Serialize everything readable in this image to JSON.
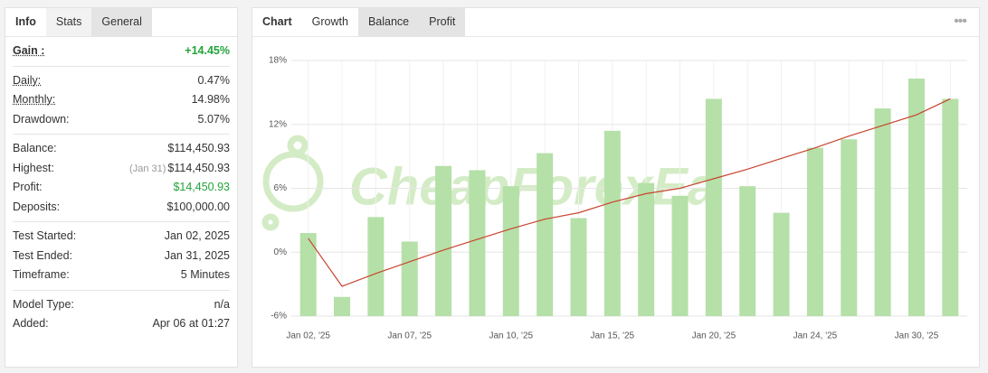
{
  "left_panel": {
    "tabs": [
      "Info",
      "Stats",
      "General"
    ],
    "groups": [
      [
        {
          "label": "Gain :",
          "value": "+14.45%",
          "color": "#22a33a"
        }
      ],
      [
        {
          "label": "Daily:",
          "value": "0.47%"
        },
        {
          "label": "Monthly:",
          "value": "14.98%"
        },
        {
          "label": "Drawdown:",
          "value": "5.07%"
        }
      ],
      [
        {
          "label": "Balance:",
          "value": "$114,450.93"
        },
        {
          "label": "Highest:",
          "note": "(Jan 31)",
          "value": "$114,450.93"
        },
        {
          "label": "Profit:",
          "value": "$14,450.93",
          "color": "#22a33a"
        },
        {
          "label": "Deposits:",
          "value": "$100,000.00"
        }
      ],
      [
        {
          "label": "Test Started:",
          "value": "Jan 02, 2025"
        },
        {
          "label": "Test Ended:",
          "value": "Jan 31, 2025"
        },
        {
          "label": "Timeframe:",
          "value": "5 Minutes"
        }
      ],
      [
        {
          "label": "Model Type:",
          "value": "n/a"
        },
        {
          "label": "Added:",
          "value": "Apr 06 at 01:27"
        }
      ]
    ]
  },
  "right_tabs": [
    "Chart",
    "Growth",
    "Balance",
    "Profit"
  ],
  "watermark": "CheapForexEa",
  "chart_data": {
    "type": "bar",
    "categories": [
      "Jan 02, '25",
      null,
      null,
      "Jan 07, '25",
      null,
      null,
      "Jan 10, '25",
      null,
      null,
      "Jan 15, '25",
      null,
      null,
      "Jan 20, '25",
      null,
      null,
      "Jan 24, '25",
      null,
      null,
      "Jan 30, '25",
      null
    ],
    "series": [
      {
        "type": "bar",
        "color": "#b5e0a8",
        "values": [
          1.8,
          -4.2,
          3.3,
          1.0,
          8.1,
          7.7,
          6.2,
          9.3,
          3.2,
          11.4,
          6.5,
          5.3,
          14.4,
          6.2,
          3.7,
          9.8,
          10.6,
          13.5,
          16.3,
          14.4
        ]
      },
      {
        "type": "line",
        "color": "#c9442f",
        "values": [
          1.3,
          -3.2,
          -2.0,
          -0.9,
          0.2,
          1.2,
          2.2,
          3.1,
          3.7,
          4.7,
          5.5,
          6.0,
          6.9,
          7.8,
          8.8,
          9.8,
          10.9,
          11.9,
          12.9,
          14.4
        ]
      }
    ],
    "ylim": [
      -6,
      18
    ],
    "yticks": [
      {
        "value": -6,
        "label": "-6%"
      },
      {
        "value": 0,
        "label": "0%"
      },
      {
        "value": 6,
        "label": "6%"
      },
      {
        "value": 12,
        "label": "12%"
      },
      {
        "value": 18,
        "label": "18%"
      }
    ],
    "grid": true
  }
}
